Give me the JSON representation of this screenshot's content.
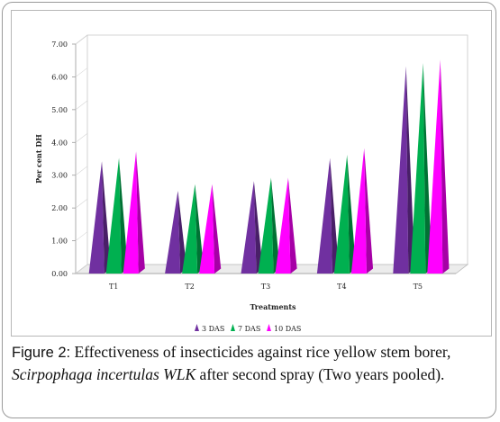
{
  "chart_data": {
    "type": "bar",
    "categories": [
      "T1",
      "T2",
      "T3",
      "T4",
      "T5"
    ],
    "series": [
      {
        "name": "3 DAS",
        "color": "#7030a0",
        "values": [
          3.3,
          2.4,
          2.7,
          3.4,
          6.2
        ]
      },
      {
        "name": "7 DAS",
        "color": "#00b050",
        "values": [
          3.4,
          2.6,
          2.8,
          3.5,
          6.3
        ]
      },
      {
        "name": "10 DAS",
        "color": "#ff00ff",
        "values": [
          3.6,
          2.6,
          2.8,
          3.7,
          6.4
        ]
      }
    ],
    "yticks": [
      "0.00",
      "1.00",
      "2.00",
      "3.00",
      "4.00",
      "5.00",
      "6.00",
      "7.00"
    ],
    "ylim": [
      0,
      7
    ],
    "ylabel": "Per cent DH",
    "xlabel": "Treatments",
    "legend_position": "bottom",
    "bar_shape": "3d-pyramid",
    "grid": false
  },
  "caption": {
    "label": "Figure 2:",
    "text1": " Effectiveness of insecticides against rice yellow stem borer,",
    "species": "Scirpophaga incertulas WLK",
    "text2": " after second spray (Two years pooled)."
  }
}
